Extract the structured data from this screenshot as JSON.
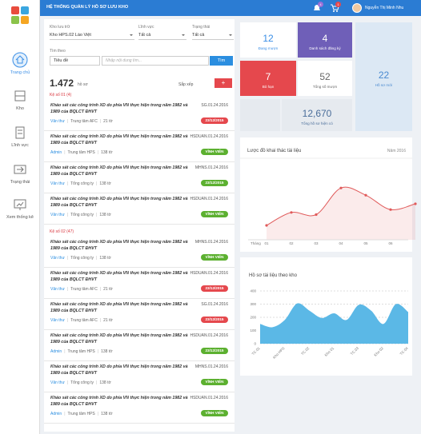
{
  "header": {
    "title": "HỆ THỐNG QUẢN LÝ HỒ SƠ LƯU KHO",
    "notifications": "4",
    "cart": "1",
    "user": "Nguyễn Thị Minh Nhu"
  },
  "nav": [
    "Trang chủ",
    "Kho",
    "Lĩnh vực",
    "Trạng thái",
    "Xem thống kê"
  ],
  "filters": {
    "store_label": "Kho lưu trữ",
    "store": "Kho HPS.02 Lào Việt",
    "field_label": "Lĩnh vực",
    "field": "Tất cả",
    "status_label": "Trạng thái",
    "status": "Tất cả",
    "search_label": "Tìm theo",
    "search_by": "Tiêu đề",
    "placeholder": "Nhập nội dung tìm...",
    "button": "Tìm"
  },
  "summary": {
    "count": "1.472",
    "unit": "hồ sơ",
    "sort": "Sắp xếp",
    "add": "+"
  },
  "groups": [
    {
      "title": "Kệ số 01 (4)",
      "items": [
        {
          "title": "Khảo sát các công trình XD do phía VN thực hiện trong năm 1982 và 1989 của BQLCT ĐHVT",
          "code": "SG.01.24.2016",
          "owner": "Văn thư",
          "unit": "Trung tâm AFC",
          "pages": "21 tờ",
          "badge": "23/12/2015",
          "badge_color": "#e5484d"
        },
        {
          "title": "Khảo sát các công trình XD do phía VN thực hiện trong năm 1982 và 1989 của BQLCT ĐHVT",
          "code": "HSDUAN.01.24.2016",
          "owner": "Admin",
          "unit": "Trung tâm HPS",
          "pages": "138 tờ",
          "badge": "VĨNH VIỄN",
          "badge_color": "#5cb030"
        },
        {
          "title": "Khảo sát các công trình XD do phía VN thực hiện trong năm 1982 và 1989 của BQLCT ĐHVT",
          "code": "MHNS.01.24.2016",
          "owner": "Văn thư",
          "unit": "Tổng công ty",
          "pages": "138 tờ",
          "badge": "23/12/2015",
          "badge_color": "#5cb030"
        },
        {
          "title": "Khảo sát các công trình XD do phía VN thực hiện trong năm 1982 và 1989 của BQLCT ĐHVT",
          "code": "HSDUAN.01.24.2016",
          "owner": "Văn thư",
          "unit": "Tổng công ty",
          "pages": "138 tờ",
          "badge": "VĨNH VIỄN",
          "badge_color": "#5cb030"
        }
      ]
    },
    {
      "title": "Kệ số 02 (47)",
      "items": [
        {
          "title": "Khảo sát các công trình XD do phía VN thực hiện trong năm 1982 và 1989 của BQLCT ĐHVT",
          "code": "MHNS.01.24.2016",
          "owner": "Văn thư",
          "unit": "Tổng công ty",
          "pages": "138 tờ",
          "badge": "VĨNH VIỄN",
          "badge_color": "#5cb030"
        },
        {
          "title": "Khảo sát các công trình XD do phía VN thực hiện trong năm 1982 và 1989 của BQLCT ĐHVT",
          "code": "HSDUAN.01.24.2016",
          "owner": "Văn thư",
          "unit": "Trung tâm AFC",
          "pages": "21 tờ",
          "badge": "23/12/2015",
          "badge_color": "#e5484d"
        },
        {
          "title": "Khảo sát các công trình XD do phía VN thực hiện trong năm 1982 và 1989 của BQLCT ĐHVT",
          "code": "SG.01.24.2016",
          "owner": "Văn thư",
          "unit": "Trung tâm AFC",
          "pages": "21 tờ",
          "badge": "23/12/2015",
          "badge_color": "#e5484d"
        },
        {
          "title": "Khảo sát các công trình XD do phía VN thực hiện trong năm 1982 và 1989 của BQLCT ĐHVT",
          "code": "HSDUAN.01.24.2016",
          "owner": "Admin",
          "unit": "Trung tâm HPS",
          "pages": "138 tờ",
          "badge": "23/12/2015",
          "badge_color": "#5cb030"
        },
        {
          "title": "Khảo sát các công trình XD do phía VN thực hiện trong năm 1982 và 1989 của BQLCT ĐHVT",
          "code": "MHNS.01.24.2016",
          "owner": "Văn thư",
          "unit": "Tổng công ty",
          "pages": "138 tờ",
          "badge": "VĨNH VIỄN",
          "badge_color": "#5cb030"
        },
        {
          "title": "Khảo sát các công trình XD do phía VN thực hiện trong năm 1982 và 1989 của BQLCT ĐHVT",
          "code": "HSDUAN.01.24.2016",
          "owner": "Admin",
          "unit": "Trung tâm HPS",
          "pages": "138 tờ",
          "badge": "VĨNH VIỄN",
          "badge_color": "#5cb030"
        }
      ]
    }
  ],
  "stats": [
    {
      "value": "12",
      "label": "Đang mượn",
      "bg": "#ffffff",
      "fg": "#3a8ee6"
    },
    {
      "value": "4",
      "label": "Danh sách đăng ký",
      "bg": "#6f5fb8",
      "fg": "#ffffff"
    },
    {
      "value": "22",
      "label": "Hồ sơ mới",
      "bg": "#dce8f4",
      "fg": "#4a8ad0"
    },
    {
      "value": "7",
      "label": "Bỏ hạn",
      "bg": "#e5484d",
      "fg": "#ffffff"
    },
    {
      "value": "52",
      "label": "Tổng số mượn",
      "bg": "#ffffff",
      "fg": "#666666"
    },
    {
      "value": "12,670",
      "label": "Tổng hồ sơ hiện có",
      "bg": "#e6eaef",
      "fg": "#4a6d9a"
    }
  ],
  "line_chart": {
    "type": "line",
    "title": "Lược đồ khai thác tài liệu",
    "subtitle": "Năm 2016",
    "xlabel": "Tháng",
    "categories": [
      "01",
      "02",
      "03",
      "04",
      "05",
      "06",
      null
    ],
    "values": [
      20,
      38,
      35,
      72,
      62,
      42,
      50
    ],
    "ylim": [
      0,
      100
    ],
    "color": "#e05a5a"
  },
  "area_chart": {
    "type": "area",
    "title": "Hồ sơ tài liệu theo kho",
    "categories": [
      "TC.01",
      null,
      "Kho HPS",
      null,
      "TC.02",
      null,
      "Kho 01",
      null,
      "TC.03",
      null,
      "Kho 02",
      null,
      "TC.04"
    ],
    "values": [
      150,
      125,
      180,
      305,
      250,
      195,
      230,
      180,
      295,
      250,
      150,
      300,
      240
    ],
    "ylim": [
      0,
      400
    ],
    "yticks": [
      0,
      100,
      200,
      300,
      400
    ],
    "color": "#5bb8e6",
    "grid": true
  }
}
